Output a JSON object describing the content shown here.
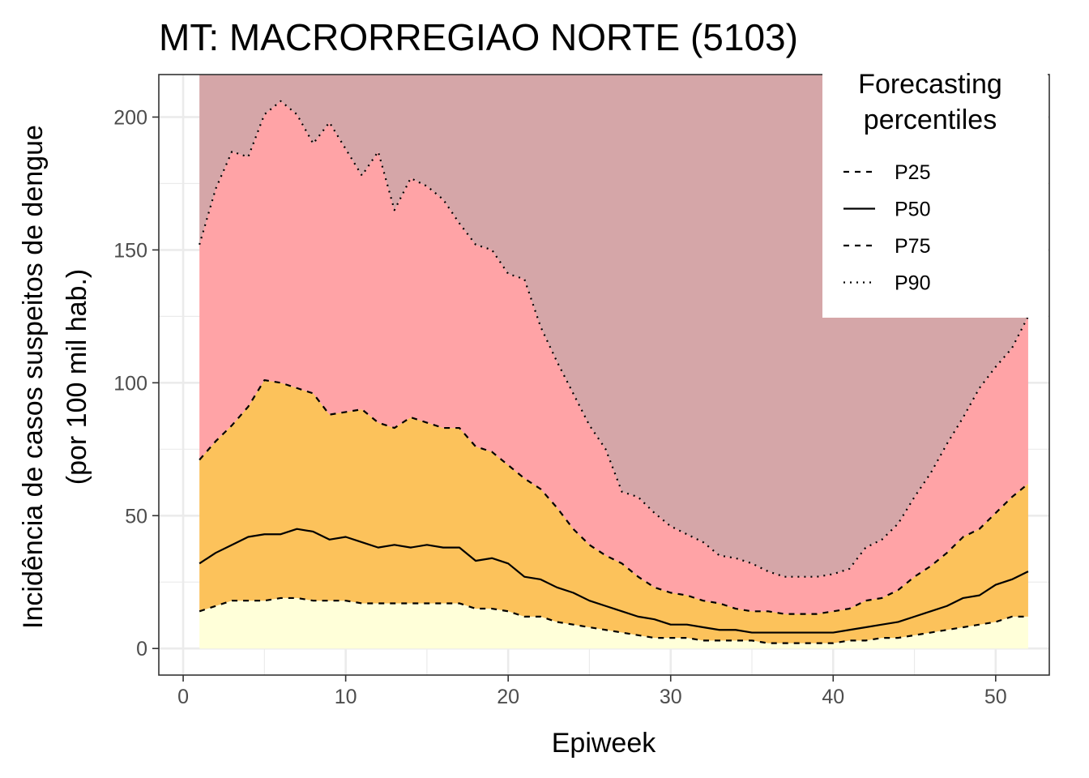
{
  "chart_data": {
    "type": "area",
    "title": "MT: MACRORREGIAO NORTE (5103)",
    "xlabel": "Epiweek",
    "ylabel_line1": "Incidência de casos suspeitos de dengue",
    "ylabel_line2": "(por 100 mil hab.)",
    "xlim": [
      -1.5,
      53.3
    ],
    "ylim": [
      -10,
      216
    ],
    "x_ticks": [
      0,
      10,
      20,
      30,
      40,
      50
    ],
    "y_ticks": [
      0,
      50,
      100,
      150,
      200
    ],
    "grid": true,
    "top_fill_value": 216,
    "x": [
      1,
      2,
      3,
      4,
      5,
      6,
      7,
      8,
      9,
      10,
      11,
      12,
      13,
      14,
      15,
      16,
      17,
      18,
      19,
      20,
      21,
      22,
      23,
      24,
      25,
      26,
      27,
      28,
      29,
      30,
      31,
      32,
      33,
      34,
      35,
      36,
      37,
      38,
      39,
      40,
      41,
      42,
      43,
      44,
      45,
      46,
      47,
      48,
      49,
      50,
      51,
      52
    ],
    "fill_colors": {
      "below_p25": "#ffffd9",
      "p25_p50": "#fcc25b",
      "p50_p75": "#fcc25b",
      "p75_p90": "#ffa3a6",
      "above_p90": "#d5a6a8"
    },
    "series": [
      {
        "name": "P25",
        "linetype": "dashed",
        "values": [
          14,
          16,
          18,
          18,
          18,
          19,
          19,
          18,
          18,
          18,
          17,
          17,
          17,
          17,
          17,
          17,
          17,
          15,
          15,
          14,
          12,
          12,
          10,
          9,
          8,
          7,
          6,
          5,
          4,
          4,
          4,
          3,
          3,
          3,
          3,
          2,
          2,
          2,
          2,
          2,
          3,
          3,
          4,
          4,
          5,
          6,
          7,
          8,
          9,
          10,
          12,
          12
        ]
      },
      {
        "name": "P50",
        "linetype": "solid",
        "values": [
          32,
          36,
          39,
          42,
          43,
          43,
          45,
          44,
          41,
          42,
          40,
          38,
          39,
          38,
          39,
          38,
          38,
          33,
          34,
          32,
          27,
          26,
          23,
          21,
          18,
          16,
          14,
          12,
          11,
          9,
          9,
          8,
          7,
          7,
          6,
          6,
          6,
          6,
          6,
          6,
          7,
          8,
          9,
          10,
          12,
          14,
          16,
          19,
          20,
          24,
          26,
          29
        ]
      },
      {
        "name": "P75",
        "linetype": "dashed",
        "values": [
          71,
          78,
          84,
          91,
          101,
          100,
          98,
          96,
          88,
          89,
          90,
          85,
          83,
          87,
          85,
          83,
          83,
          76,
          74,
          69,
          64,
          60,
          53,
          45,
          39,
          35,
          32,
          27,
          23,
          21,
          20,
          18,
          17,
          15,
          14,
          14,
          13,
          13,
          13,
          14,
          15,
          18,
          19,
          22,
          27,
          31,
          36,
          42,
          45,
          51,
          57,
          62
        ]
      },
      {
        "name": "P90",
        "linetype": "dotted",
        "values": [
          152,
          173,
          187,
          185,
          201,
          206,
          201,
          190,
          198,
          188,
          178,
          187,
          165,
          177,
          174,
          169,
          160,
          152,
          150,
          141,
          139,
          121,
          108,
          96,
          84,
          75,
          59,
          57,
          51,
          46,
          43,
          40,
          35,
          34,
          32,
          29,
          27,
          27,
          27,
          28,
          30,
          38,
          41,
          47,
          57,
          66,
          77,
          87,
          98,
          106,
          113,
          125
        ]
      }
    ],
    "legend": {
      "title_line1": "Forecasting",
      "title_line2": "percentiles",
      "position": "top-right",
      "items": [
        {
          "label": "P25",
          "linetype": "dashed"
        },
        {
          "label": "P50",
          "linetype": "solid"
        },
        {
          "label": "P75",
          "linetype": "dashed"
        },
        {
          "label": "P90",
          "linetype": "dotted"
        }
      ]
    }
  }
}
